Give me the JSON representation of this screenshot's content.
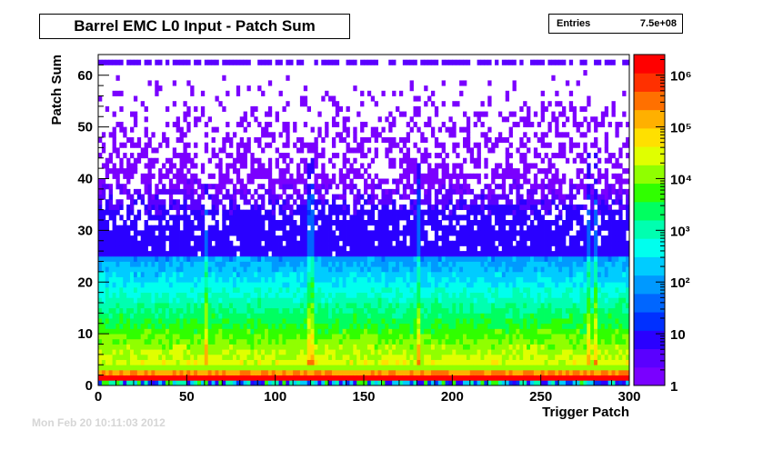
{
  "chart_data": {
    "type": "heatmap",
    "title": "Barrel EMC L0 Input - Patch Sum",
    "stats": {
      "label": "Entries",
      "value": "7.5e+08"
    },
    "xlabel": "Trigger Patch",
    "ylabel": "Patch Sum",
    "xlim": [
      0,
      300
    ],
    "ylim": [
      0,
      64
    ],
    "x_ticks": [
      "0",
      "50",
      "100",
      "150",
      "200",
      "250",
      "300"
    ],
    "y_ticks": [
      "0",
      "10",
      "20",
      "30",
      "40",
      "50",
      "60"
    ],
    "z_scale": "log",
    "z_range": [
      1,
      2500000
    ],
    "z_ticks": [
      "1",
      "10",
      "10²",
      "10³",
      "10⁴",
      "10⁵",
      "10⁶"
    ],
    "palette": [
      "#7a00ff",
      "#5a00ff",
      "#2a00ff",
      "#0030ff",
      "#0066ff",
      "#0099ff",
      "#00ccff",
      "#00ffee",
      "#00ffb0",
      "#00ff60",
      "#30ff00",
      "#90ff00",
      "#e0ff00",
      "#ffe000",
      "#ffb000",
      "#ff7000",
      "#ff3000",
      "#ff0000"
    ],
    "grid": false,
    "legend": "color-bar-right"
  },
  "footer_text": "Mon Feb 20 10:11:03 2012"
}
